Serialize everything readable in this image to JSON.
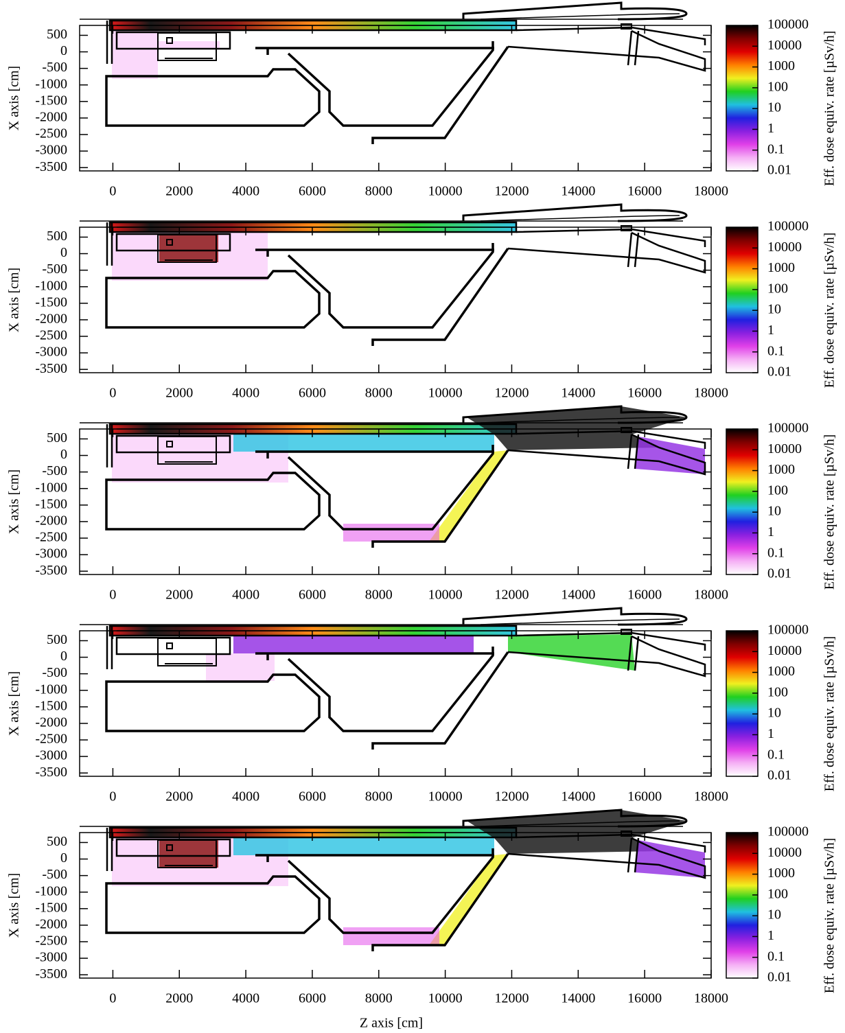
{
  "chart_data": [
    {
      "type": "heatmap",
      "y_label": "X axis [cm]",
      "colorbar_label": "Eff. dose equiv. rate [µSv/h]",
      "xlim": [
        -1000,
        18000
      ],
      "ylim": [
        -3600,
        800
      ],
      "xticks": [
        0,
        2000,
        4000,
        6000,
        8000,
        10000,
        12000,
        14000,
        16000,
        18000
      ],
      "yticks": [
        500,
        0,
        -500,
        -1000,
        -1500,
        -2000,
        -2500,
        -3000,
        -3500
      ],
      "colorbar": {
        "scale": "log",
        "lim": [
          0.01,
          100000
        ],
        "ticks": [
          100000,
          10000,
          1000,
          100,
          10,
          1,
          0.1,
          0.01
        ],
        "colors": [
          "#ffffff",
          "#f5b0f5",
          "#e040e8",
          "#8a20e0",
          "#2020e0",
          "#20c0e0",
          "#20d020",
          "#f0f020",
          "#ff8000",
          "#e00000",
          "#800000",
          "#000000"
        ]
      }
    },
    {
      "type": "heatmap",
      "y_label": "X axis [cm]",
      "colorbar_label": "Eff. dose equiv. rate [µSv/h]",
      "xlim": [
        -1000,
        18000
      ],
      "ylim": [
        -3600,
        800
      ],
      "xticks": [
        0,
        2000,
        4000,
        6000,
        8000,
        10000,
        12000,
        14000,
        16000,
        18000
      ],
      "yticks": [
        500,
        0,
        -500,
        -1000,
        -1500,
        -2000,
        -2500,
        -3000,
        -3500
      ],
      "colorbar": {
        "scale": "log",
        "lim": [
          0.01,
          100000
        ],
        "ticks": [
          100000,
          10000,
          1000,
          100,
          10,
          1,
          0.1,
          0.01
        ],
        "colors": [
          "#ffffff",
          "#f5b0f5",
          "#e040e8",
          "#8a20e0",
          "#2020e0",
          "#20c0e0",
          "#20d020",
          "#f0f020",
          "#ff8000",
          "#e00000",
          "#800000",
          "#000000"
        ]
      }
    },
    {
      "type": "heatmap",
      "y_label": "X axis [cm]",
      "colorbar_label": "Eff. dose equiv. rate [µSv/h]",
      "xlim": [
        -1000,
        18000
      ],
      "ylim": [
        -3600,
        800
      ],
      "xticks": [
        0,
        2000,
        4000,
        6000,
        8000,
        10000,
        12000,
        14000,
        16000,
        18000
      ],
      "yticks": [
        500,
        0,
        -500,
        -1000,
        -1500,
        -2000,
        -2500,
        -3000,
        -3500
      ],
      "colorbar": {
        "scale": "log",
        "lim": [
          0.01,
          100000
        ],
        "ticks": [
          100000,
          10000,
          1000,
          100,
          10,
          1,
          0.1,
          0.01
        ],
        "colors": [
          "#ffffff",
          "#f5b0f5",
          "#e040e8",
          "#8a20e0",
          "#2020e0",
          "#20c0e0",
          "#20d020",
          "#f0f020",
          "#ff8000",
          "#e00000",
          "#800000",
          "#000000"
        ]
      }
    },
    {
      "type": "heatmap",
      "y_label": "X axis [cm]",
      "colorbar_label": "Eff. dose equiv. rate [µSv/h]",
      "xlim": [
        -1000,
        18000
      ],
      "ylim": [
        -3600,
        800
      ],
      "xticks": [
        0,
        2000,
        4000,
        6000,
        8000,
        10000,
        12000,
        14000,
        16000,
        18000
      ],
      "yticks": [
        500,
        0,
        -500,
        -1000,
        -1500,
        -2000,
        -2500,
        -3000,
        -3500
      ],
      "colorbar": {
        "scale": "log",
        "lim": [
          0.01,
          100000
        ],
        "ticks": [
          100000,
          10000,
          1000,
          100,
          10,
          1,
          0.1,
          0.01
        ],
        "colors": [
          "#ffffff",
          "#f5b0f5",
          "#e040e8",
          "#8a20e0",
          "#2020e0",
          "#20c0e0",
          "#20d020",
          "#f0f020",
          "#ff8000",
          "#e00000",
          "#800000",
          "#000000"
        ]
      }
    },
    {
      "type": "heatmap",
      "y_label": "X axis [cm]",
      "x_label": "Z axis [cm]",
      "colorbar_label": "Eff. dose equiv. rate [µSv/h]",
      "xlim": [
        -1000,
        18000
      ],
      "ylim": [
        -3600,
        800
      ],
      "xticks": [
        0,
        2000,
        4000,
        6000,
        8000,
        10000,
        12000,
        14000,
        16000,
        18000
      ],
      "yticks": [
        500,
        0,
        -500,
        -1000,
        -1500,
        -2000,
        -2500,
        -3000,
        -3500
      ],
      "colorbar": {
        "scale": "log",
        "lim": [
          0.01,
          100000
        ],
        "ticks": [
          100000,
          10000,
          1000,
          100,
          10,
          1,
          0.1,
          0.01
        ],
        "colors": [
          "#ffffff",
          "#f5b0f5",
          "#e040e8",
          "#8a20e0",
          "#2020e0",
          "#20c0e0",
          "#20d020",
          "#f0f020",
          "#ff8000",
          "#e00000",
          "#800000",
          "#000000"
        ]
      }
    }
  ]
}
